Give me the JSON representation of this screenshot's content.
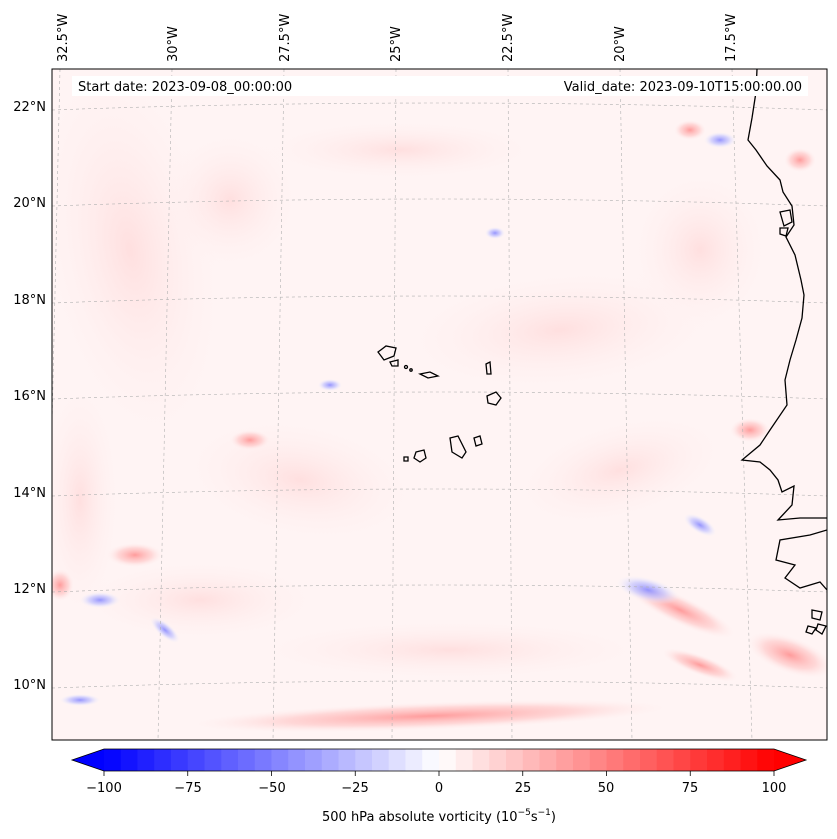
{
  "map": {
    "start_label": "Start date: 2023-09-08_00:00:00",
    "valid_label": "Valid_date: 2023-09-10T15:00:00.00",
    "lon_labels": [
      "32.5°W",
      "30°W",
      "27.5°W",
      "25°W",
      "22.5°W",
      "20°W",
      "17.5°W"
    ],
    "lat_labels": [
      "22°N",
      "20°N",
      "18°N",
      "16°N",
      "14°N",
      "12°N",
      "10°N"
    ],
    "extent": {
      "lon_min": -33.0,
      "lon_max": -15.8,
      "lat_min": 9.0,
      "lat_max": 22.8
    }
  },
  "colorbar": {
    "label": "500 hPa absolute vorticity (10",
    "label_exp1": "−5",
    "label_mid": "s",
    "label_exp2": "−1",
    "label_end": ")",
    "ticks": [
      "−100",
      "−75",
      "−50",
      "−25",
      "0",
      "25",
      "50",
      "75",
      "100"
    ],
    "tick_values": [
      -100,
      -75,
      -50,
      -25,
      0,
      25,
      50,
      75,
      100
    ],
    "vmin": -100,
    "vmax": 100,
    "levels": 40
  },
  "colors": {
    "negative": "#0000ff",
    "positive": "#ff0000",
    "neutral": "#ffffff",
    "coastline": "#000000",
    "grid": "#b0b0b0"
  }
}
